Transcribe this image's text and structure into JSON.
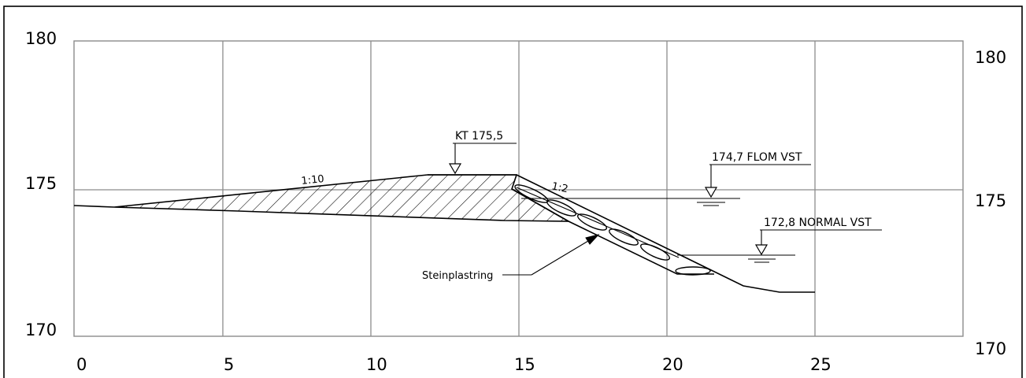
{
  "frame_color": "#000000",
  "grid_color": "#8c8c8c",
  "axis": {
    "left_y_labels": [
      "180",
      "175",
      "170"
    ],
    "right_y_labels": [
      "180",
      "175",
      "170"
    ],
    "x_labels": [
      "0",
      "5",
      "10",
      "15",
      "20",
      "25"
    ]
  },
  "annotations": {
    "crest": "KT 175,5",
    "slope_upstream": "1:10",
    "slope_downstream": "1:2",
    "flood_level": "174,7 FLOM VST",
    "normal_level": "172,8 NORMAL VST",
    "riprap": "Steinplastring"
  }
}
